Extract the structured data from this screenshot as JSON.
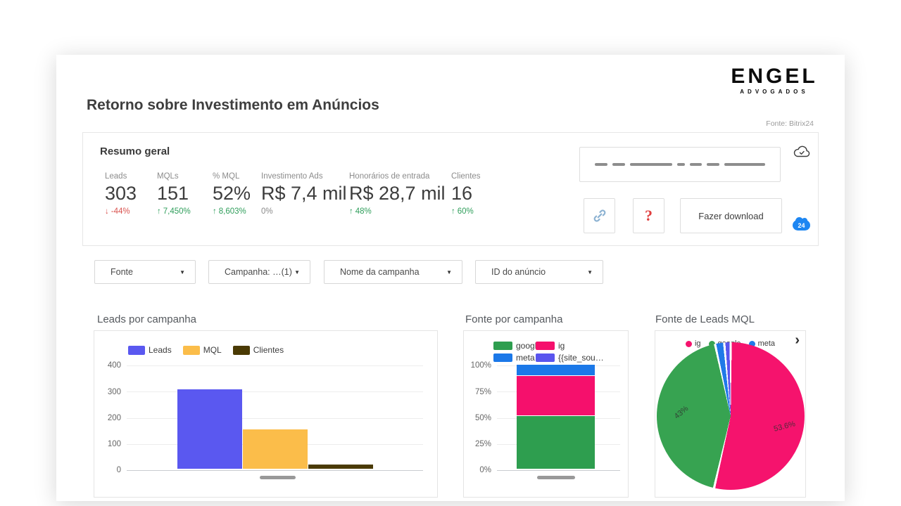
{
  "page": {
    "title": "Retorno sobre Investimento em Anúncios",
    "source_note": "Fonte: Bitrix24"
  },
  "logo": {
    "primary": "ENGEL",
    "secondary": "ADVOGADOS"
  },
  "summary": {
    "title": "Resumo geral",
    "kpis": [
      {
        "label": "Leads",
        "value": "303",
        "arrow": "↓",
        "delta": "-44%",
        "tone": "down"
      },
      {
        "label": "MQLs",
        "value": "151",
        "arrow": "↑",
        "delta": "7,450%",
        "tone": "up"
      },
      {
        "label": "% MQL",
        "value": "52%",
        "arrow": "↑",
        "delta": "8,603%",
        "tone": "up"
      },
      {
        "label": "Investimento Ads",
        "value": "R$ 7,4 mil",
        "arrow": "",
        "delta": "0%",
        "tone": "flat"
      },
      {
        "label": "Honorários de entrada",
        "value": "R$ 28,7 mil",
        "arrow": "↑",
        "delta": "48%",
        "tone": "up"
      },
      {
        "label": "Clientes",
        "value": "16",
        "arrow": "↑",
        "delta": "60%",
        "tone": "up"
      }
    ],
    "dashes": [
      18,
      18,
      60,
      11,
      17,
      18,
      58
    ],
    "help_label": "?",
    "download_label": "Fazer download",
    "badge_label": "24"
  },
  "filters": [
    {
      "label": "Fonte"
    },
    {
      "label": "Campanha: …(1)"
    },
    {
      "label": "Nome da campanha"
    },
    {
      "label": "ID do anúncio"
    }
  ],
  "chart_data": [
    {
      "type": "bar",
      "title": "Leads por campanha",
      "categories": [
        ""
      ],
      "series": [
        {
          "name": "Leads",
          "values": [
            303
          ],
          "color": "#5a58f0"
        },
        {
          "name": "MQL",
          "values": [
            151
          ],
          "color": "#fbbd4a"
        },
        {
          "name": "Clientes",
          "values": [
            16
          ],
          "color": "#4a3a04"
        }
      ],
      "ylim": [
        0,
        400
      ],
      "yticks": [
        "400",
        "300",
        "200",
        "100",
        "0"
      ],
      "grid": true,
      "legend_position": "top",
      "x_tick_style": "redacted-dash"
    },
    {
      "type": "bar",
      "title": "Fonte por campanha",
      "stacked": true,
      "percent": true,
      "categories": [
        ""
      ],
      "series": [
        {
          "name": "google",
          "values": [
            51
          ],
          "color": "#2e9e4f"
        },
        {
          "name": "ig",
          "values": [
            38
          ],
          "color": "#f5106c"
        },
        {
          "name": "meta",
          "values": [
            11
          ],
          "color": "#1b78e8"
        },
        {
          "name": "{{site_sou…",
          "values": [
            0
          ],
          "color": "#5a55ee"
        }
      ],
      "ylim": [
        0,
        100
      ],
      "yticks": [
        "100%",
        "75%",
        "50%",
        "25%",
        "0%"
      ],
      "grid": true,
      "legend_position": "top",
      "x_tick_style": "redacted-dash"
    },
    {
      "type": "pie",
      "title": "Fonte de Leads MQL",
      "slices": [
        {
          "name": "ig",
          "value": 53.6,
          "label": "53.6%",
          "color": "#f5136d"
        },
        {
          "name": "google",
          "value": 43,
          "label": "43%",
          "color": "#37a351"
        },
        {
          "name": "meta",
          "value": 2,
          "label": "",
          "color": "#2079e8"
        },
        {
          "name": "",
          "value": 1.4,
          "label": "",
          "color": "#5a55ee"
        }
      ],
      "legend_position": "top"
    }
  ]
}
